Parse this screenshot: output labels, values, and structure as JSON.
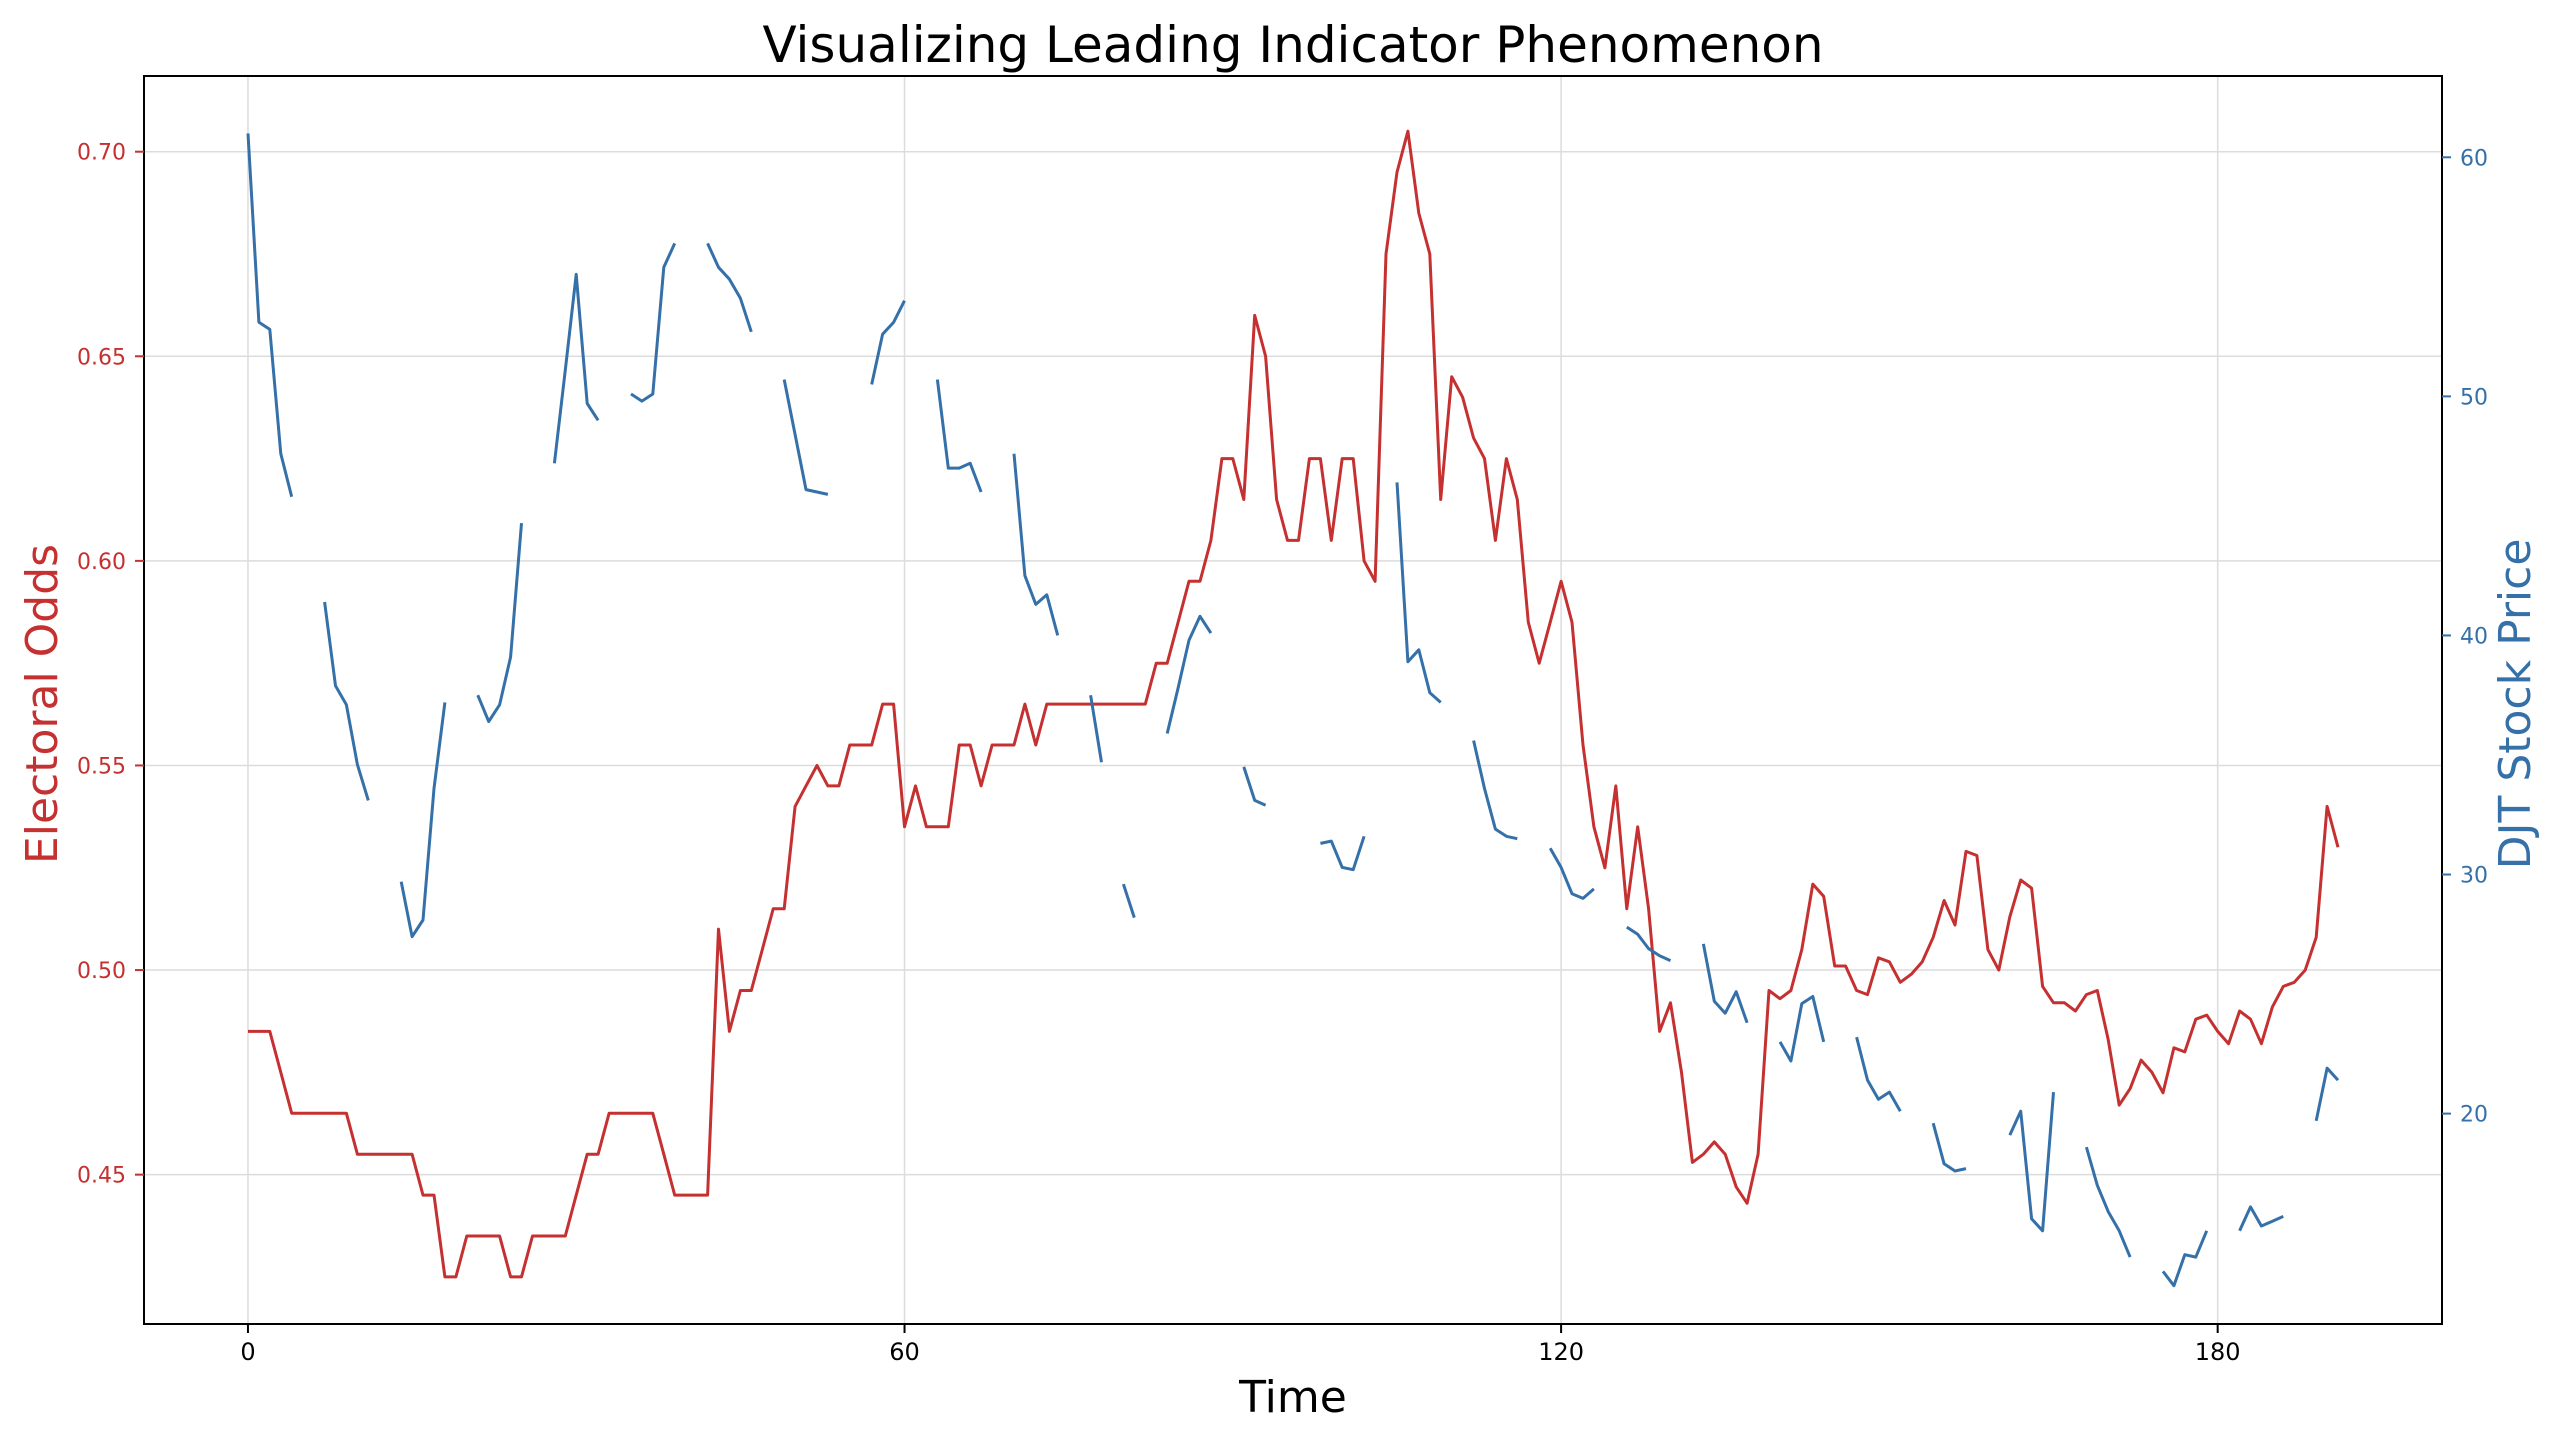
{
  "chart_data": {
    "type": "line",
    "title": "Visualizing Leading Indicator Phenomenon",
    "xlabel": "Time",
    "ylabel_left": "Electoral Odds",
    "ylabel_right": "DJT Stock Price",
    "xlim": [
      -9.5,
      200.5
    ],
    "ylim_left": [
      0.4135,
      0.7185
    ],
    "ylim_right": [
      11.2,
      63.4
    ],
    "x_ticks": [
      0,
      60,
      120,
      180
    ],
    "x_tick_labels": [
      "0",
      "60",
      "120",
      "180"
    ],
    "y_left_ticks": [
      0.45,
      0.5,
      0.55,
      0.6,
      0.65,
      0.7
    ],
    "y_left_tick_labels": [
      "0.45",
      "0.50",
      "0.55",
      "0.60",
      "0.65",
      "0.70"
    ],
    "y_right_ticks": [
      20,
      30,
      40,
      50,
      60
    ],
    "y_right_tick_labels": [
      "20",
      "30",
      "40",
      "50",
      "60"
    ],
    "grid": true,
    "colors": {
      "odds": "#c53030",
      "stock": "#3570a8",
      "grid": "#dcdcdc",
      "axis": "#000000"
    },
    "series": [
      {
        "axis": "left",
        "color": "#c53030",
        "x": [
          0,
          1,
          2,
          3,
          4,
          5,
          6,
          7,
          8,
          9,
          10,
          11,
          12,
          13,
          14,
          15,
          16,
          17,
          18,
          19,
          20,
          21,
          22,
          23,
          24,
          25,
          26,
          27,
          28,
          29,
          30,
          31,
          32,
          33,
          34,
          35,
          36,
          37,
          38,
          39,
          40,
          41,
          42,
          43,
          44,
          45,
          46,
          47,
          48,
          49,
          50,
          51,
          52,
          53,
          54,
          55,
          56,
          57,
          58,
          59,
          60,
          61,
          62,
          63,
          64,
          65,
          66,
          67,
          68,
          69,
          70,
          71,
          72,
          73,
          74,
          75,
          76,
          77,
          78,
          79,
          80,
          81,
          82,
          83,
          84,
          85,
          86,
          87,
          88,
          89,
          90,
          91,
          92,
          93,
          94,
          95,
          96,
          97,
          98,
          99,
          100,
          101,
          102,
          103,
          104,
          105,
          106,
          107,
          108,
          109,
          110,
          111,
          112,
          113,
          114,
          115,
          116,
          117,
          118,
          119,
          120,
          121,
          122,
          123,
          124,
          125,
          126,
          127,
          128,
          129,
          130,
          131,
          132,
          133,
          134,
          135,
          136,
          137,
          138,
          139,
          140,
          141,
          142,
          143,
          144,
          145,
          146,
          147,
          148,
          149,
          150,
          151,
          152,
          153,
          154,
          155,
          156,
          157,
          158,
          159,
          160,
          161,
          162,
          163,
          164,
          165,
          166,
          167,
          168,
          169,
          170,
          171,
          172,
          173,
          174,
          175,
          176,
          177,
          178,
          179,
          180,
          181,
          182,
          183,
          184,
          185,
          186,
          187,
          188,
          189,
          190,
          191
        ],
        "y": [
          0.485,
          0.485,
          0.485,
          0.475,
          0.465,
          0.465,
          0.465,
          0.465,
          0.465,
          0.465,
          0.455,
          0.455,
          0.455,
          0.455,
          0.455,
          0.455,
          0.445,
          0.445,
          0.425,
          0.425,
          0.435,
          0.435,
          0.435,
          0.435,
          0.425,
          0.425,
          0.435,
          0.435,
          0.435,
          0.435,
          0.445,
          0.455,
          0.455,
          0.465,
          0.465,
          0.465,
          0.465,
          0.465,
          0.455,
          0.445,
          0.445,
          0.445,
          0.445,
          0.51,
          0.485,
          0.495,
          0.495,
          0.505,
          0.515,
          0.515,
          0.54,
          0.545,
          0.55,
          0.545,
          0.545,
          0.555,
          0.555,
          0.555,
          0.565,
          0.565,
          0.535,
          0.545,
          0.535,
          0.535,
          0.535,
          0.555,
          0.555,
          0.545,
          0.555,
          0.555,
          0.555,
          0.565,
          0.555,
          0.565,
          0.565,
          0.565,
          0.565,
          0.565,
          0.565,
          0.565,
          0.565,
          0.565,
          0.565,
          0.575,
          0.575,
          0.585,
          0.595,
          0.595,
          0.605,
          0.625,
          0.625,
          0.615,
          0.66,
          0.65,
          0.615,
          0.605,
          0.605,
          0.625,
          0.625,
          0.605,
          0.625,
          0.625,
          0.6,
          0.595,
          0.675,
          0.695,
          0.705,
          0.685,
          0.675,
          0.615,
          0.645,
          0.64,
          0.63,
          0.625,
          0.605,
          0.625,
          0.615,
          0.585,
          0.575,
          0.585,
          0.595,
          0.585,
          0.555,
          0.535,
          0.525,
          0.545,
          0.515,
          0.535,
          0.515,
          0.485,
          0.492,
          0.475,
          0.453,
          0.455,
          0.458,
          0.455,
          0.447,
          0.443,
          0.455,
          0.495,
          0.493,
          0.495,
          0.505,
          0.521,
          0.518,
          0.501,
          0.501,
          0.495,
          0.494,
          0.503,
          0.502,
          0.497,
          0.499,
          0.502,
          0.508,
          0.517,
          0.511,
          0.529,
          0.528,
          0.505,
          0.5,
          0.513,
          0.522,
          0.52,
          0.496,
          0.492,
          0.492,
          0.49,
          0.494,
          0.495,
          0.483,
          0.467,
          0.471,
          0.478,
          0.475,
          0.47,
          0.481,
          0.48,
          0.488,
          0.489,
          0.485,
          0.482,
          0.49,
          0.488,
          0.482,
          0.491,
          0.496,
          0.497,
          0.5,
          0.508,
          0.54,
          0.53
        ]
      },
      {
        "axis": "right",
        "color": "#3570a8",
        "segments": [
          {
            "x": [
              0,
              1,
              2,
              3,
              4
            ],
            "y": [
              61,
              53.1,
              52.8,
              47.6,
              45.8
            ]
          },
          {
            "x": [
              7,
              8,
              9,
              10,
              11
            ],
            "y": [
              41.4,
              37.9,
              37.1,
              34.6,
              33.1
            ]
          },
          {
            "x": [
              14,
              15,
              16,
              17,
              18
            ],
            "y": [
              29.7,
              27.4,
              28.1,
              33.6,
              37.2
            ]
          },
          {
            "x": [
              21,
              22,
              23,
              24,
              25
            ],
            "y": [
              37.5,
              36.4,
              37.1,
              39.1,
              44.7
            ]
          },
          {
            "x": [
              28,
              29,
              30,
              31,
              32
            ],
            "y": [
              47.2,
              51.1,
              55.1,
              49.7,
              49
            ]
          },
          {
            "x": [
              35,
              36,
              37,
              38,
              39
            ],
            "y": [
              50.1,
              49.8,
              50.1,
              55.4,
              56.4
            ]
          },
          {
            "x": [
              42,
              43,
              44,
              45,
              46
            ],
            "y": [
              56.4,
              55.4,
              54.9,
              54.1,
              52.7
            ]
          },
          {
            "x": [
              49,
              50,
              51,
              52,
              53
            ],
            "y": [
              50.7,
              48.4,
              46.1,
              46,
              45.9
            ]
          },
          {
            "x": [
              57,
              58,
              59,
              60
            ],
            "y": [
              50.5,
              52.6,
              53.1,
              54
            ]
          },
          {
            "x": [
              63,
              64,
              65,
              66,
              67
            ],
            "y": [
              50.7,
              47,
              47,
              47.2,
              46
            ]
          },
          {
            "x": [
              70,
              71,
              72,
              73,
              74
            ],
            "y": [
              47.6,
              42.5,
              41.3,
              41.7,
              40
            ]
          },
          {
            "x": [
              77,
              78
            ],
            "y": [
              37.5,
              34.7
            ]
          },
          {
            "x": [
              80,
              81
            ],
            "y": [
              29.6,
              28.2
            ]
          },
          {
            "x": [
              84,
              85,
              86,
              87,
              88
            ],
            "y": [
              35.9,
              37.8,
              39.8,
              40.8,
              40.1
            ]
          },
          {
            "x": [
              91,
              92,
              93
            ],
            "y": [
              34.5,
              33.1,
              32.9
            ]
          },
          {
            "x": [
              98,
              99,
              100,
              101,
              102
            ],
            "y": [
              31.3,
              31.4,
              30.3,
              30.2,
              31.6
            ]
          },
          {
            "x": [
              105,
              106,
              107,
              108,
              109
            ],
            "y": [
              46.4,
              38.9,
              39.4,
              37.6,
              37.2
            ]
          },
          {
            "x": [
              112,
              113,
              114,
              115,
              116
            ],
            "y": [
              35.6,
              33.6,
              31.9,
              31.6,
              31.5
            ]
          },
          {
            "x": [
              119,
              120,
              121,
              122,
              123
            ],
            "y": [
              31.1,
              30.3,
              29.2,
              29,
              29.4
            ]
          },
          {
            "x": [
              126,
              127,
              128,
              129,
              130
            ],
            "y": [
              27.8,
              27.5,
              26.9,
              26.6,
              26.4
            ]
          },
          {
            "x": [
              133,
              134,
              135,
              136,
              137
            ],
            "y": [
              27.1,
              24.7,
              24.2,
              25.1,
              23.8
            ]
          },
          {
            "x": [
              140,
              141,
              142,
              143,
              144
            ],
            "y": [
              23,
              22.2,
              24.6,
              24.9,
              23
            ]
          },
          {
            "x": [
              147,
              148,
              149,
              150,
              151
            ],
            "y": [
              23.2,
              21.4,
              20.6,
              20.9,
              20.1
            ]
          },
          {
            "x": [
              154,
              155,
              156,
              157
            ],
            "y": [
              19.6,
              17.9,
              17.6,
              17.7
            ]
          },
          {
            "x": [
              161,
              162,
              163,
              164,
              165
            ],
            "y": [
              19.1,
              20.1,
              15.6,
              15.1,
              20.9
            ]
          },
          {
            "x": [
              168,
              169,
              170,
              171,
              172
            ],
            "y": [
              18.6,
              17,
              15.9,
              15.1,
              14
            ]
          },
          {
            "x": [
              175,
              176,
              177,
              178,
              179
            ],
            "y": [
              13.4,
              12.8,
              14.1,
              14,
              15.1
            ]
          },
          {
            "x": [
              182,
              183,
              184,
              185,
              186
            ],
            "y": [
              15.1,
              16.1,
              15.3,
              15.5,
              15.7
            ]
          },
          {
            "x": [
              189,
              190,
              191
            ],
            "y": [
              19.7,
              21.9,
              21.4
            ]
          }
        ]
      }
    ]
  }
}
